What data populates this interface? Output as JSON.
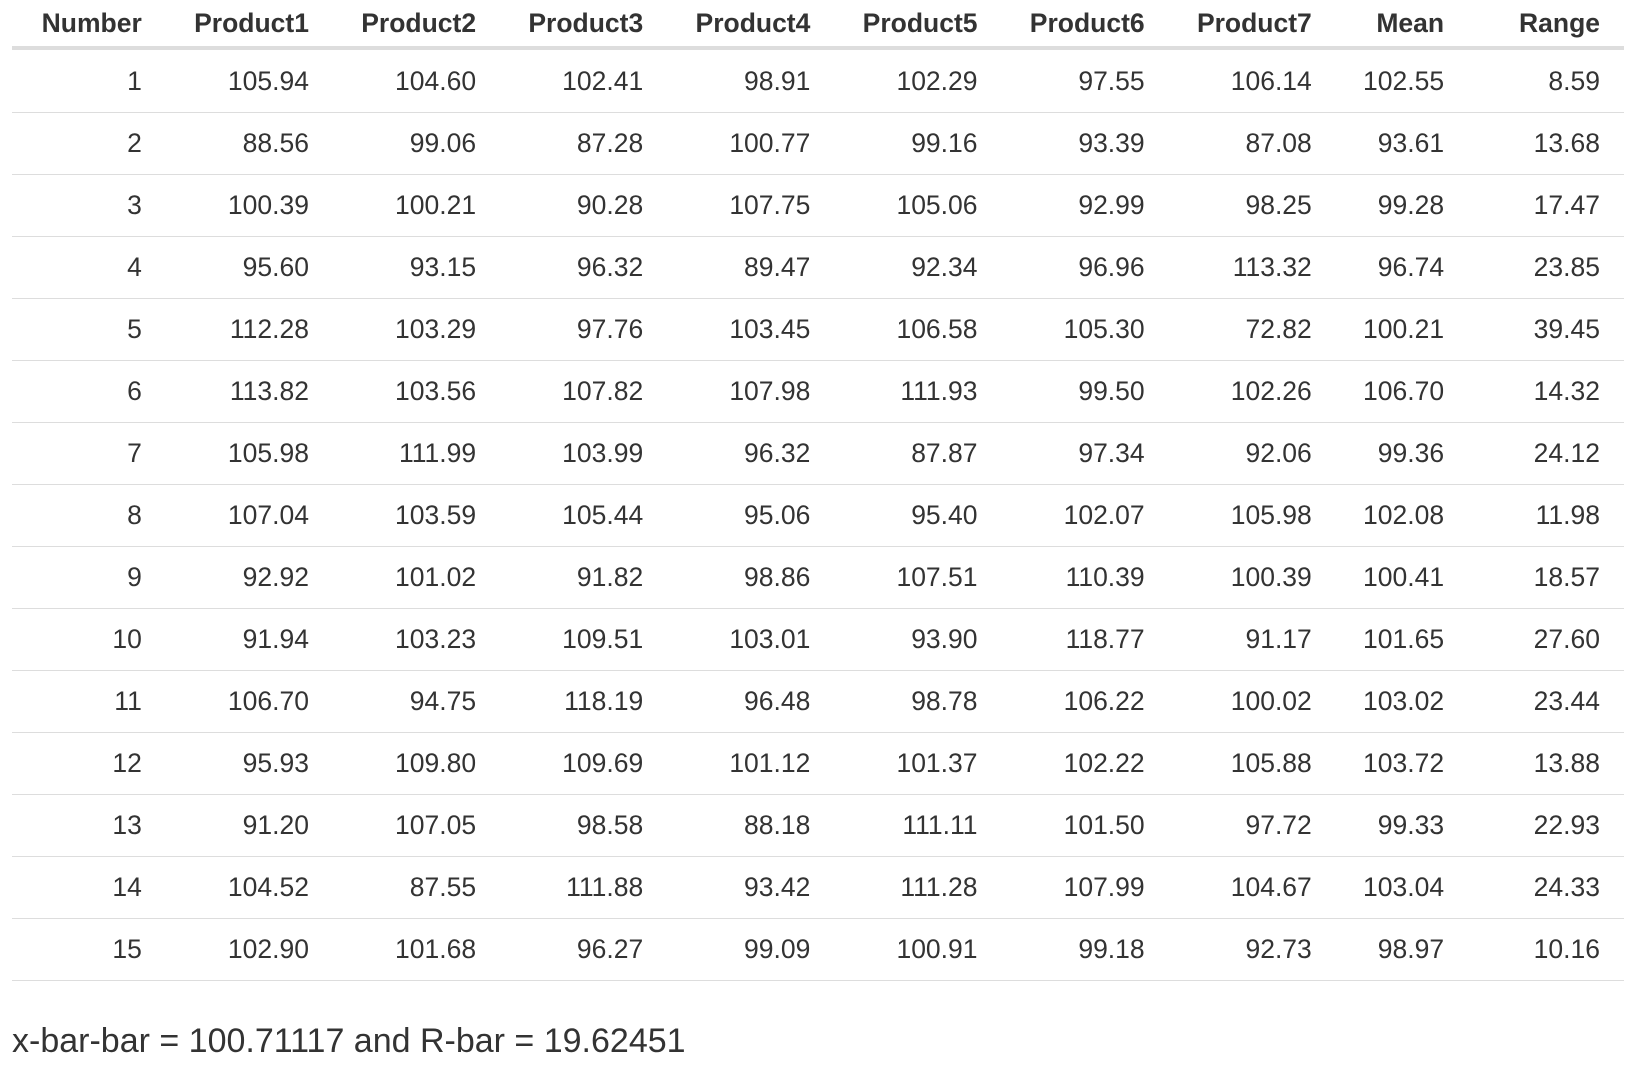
{
  "table": {
    "headers": [
      "Number",
      "Product1",
      "Product2",
      "Product3",
      "Product4",
      "Product5",
      "Product6",
      "Product7",
      "Mean",
      "Range"
    ],
    "rows": [
      [
        "1",
        "105.94",
        "104.60",
        "102.41",
        "98.91",
        "102.29",
        "97.55",
        "106.14",
        "102.55",
        "8.59"
      ],
      [
        "2",
        "88.56",
        "99.06",
        "87.28",
        "100.77",
        "99.16",
        "93.39",
        "87.08",
        "93.61",
        "13.68"
      ],
      [
        "3",
        "100.39",
        "100.21",
        "90.28",
        "107.75",
        "105.06",
        "92.99",
        "98.25",
        "99.28",
        "17.47"
      ],
      [
        "4",
        "95.60",
        "93.15",
        "96.32",
        "89.47",
        "92.34",
        "96.96",
        "113.32",
        "96.74",
        "23.85"
      ],
      [
        "5",
        "112.28",
        "103.29",
        "97.76",
        "103.45",
        "106.58",
        "105.30",
        "72.82",
        "100.21",
        "39.45"
      ],
      [
        "6",
        "113.82",
        "103.56",
        "107.82",
        "107.98",
        "111.93",
        "99.50",
        "102.26",
        "106.70",
        "14.32"
      ],
      [
        "7",
        "105.98",
        "111.99",
        "103.99",
        "96.32",
        "87.87",
        "97.34",
        "92.06",
        "99.36",
        "24.12"
      ],
      [
        "8",
        "107.04",
        "103.59",
        "105.44",
        "95.06",
        "95.40",
        "102.07",
        "105.98",
        "102.08",
        "11.98"
      ],
      [
        "9",
        "92.92",
        "101.02",
        "91.82",
        "98.86",
        "107.51",
        "110.39",
        "100.39",
        "100.41",
        "18.57"
      ],
      [
        "10",
        "91.94",
        "103.23",
        "109.51",
        "103.01",
        "93.90",
        "118.77",
        "91.17",
        "101.65",
        "27.60"
      ],
      [
        "11",
        "106.70",
        "94.75",
        "118.19",
        "96.48",
        "98.78",
        "106.22",
        "100.02",
        "103.02",
        "23.44"
      ],
      [
        "12",
        "95.93",
        "109.80",
        "109.69",
        "101.12",
        "101.37",
        "102.22",
        "105.88",
        "103.72",
        "13.88"
      ],
      [
        "13",
        "91.20",
        "107.05",
        "98.58",
        "88.18",
        "111.11",
        "101.50",
        "97.72",
        "99.33",
        "22.93"
      ],
      [
        "14",
        "104.52",
        "87.55",
        "111.88",
        "93.42",
        "111.28",
        "107.99",
        "104.67",
        "103.04",
        "24.33"
      ],
      [
        "15",
        "102.90",
        "101.68",
        "96.27",
        "99.09",
        "100.91",
        "99.18",
        "92.73",
        "98.97",
        "10.16"
      ]
    ]
  },
  "summary": "x-bar-bar = 100.71117 and R-bar = 19.62451"
}
